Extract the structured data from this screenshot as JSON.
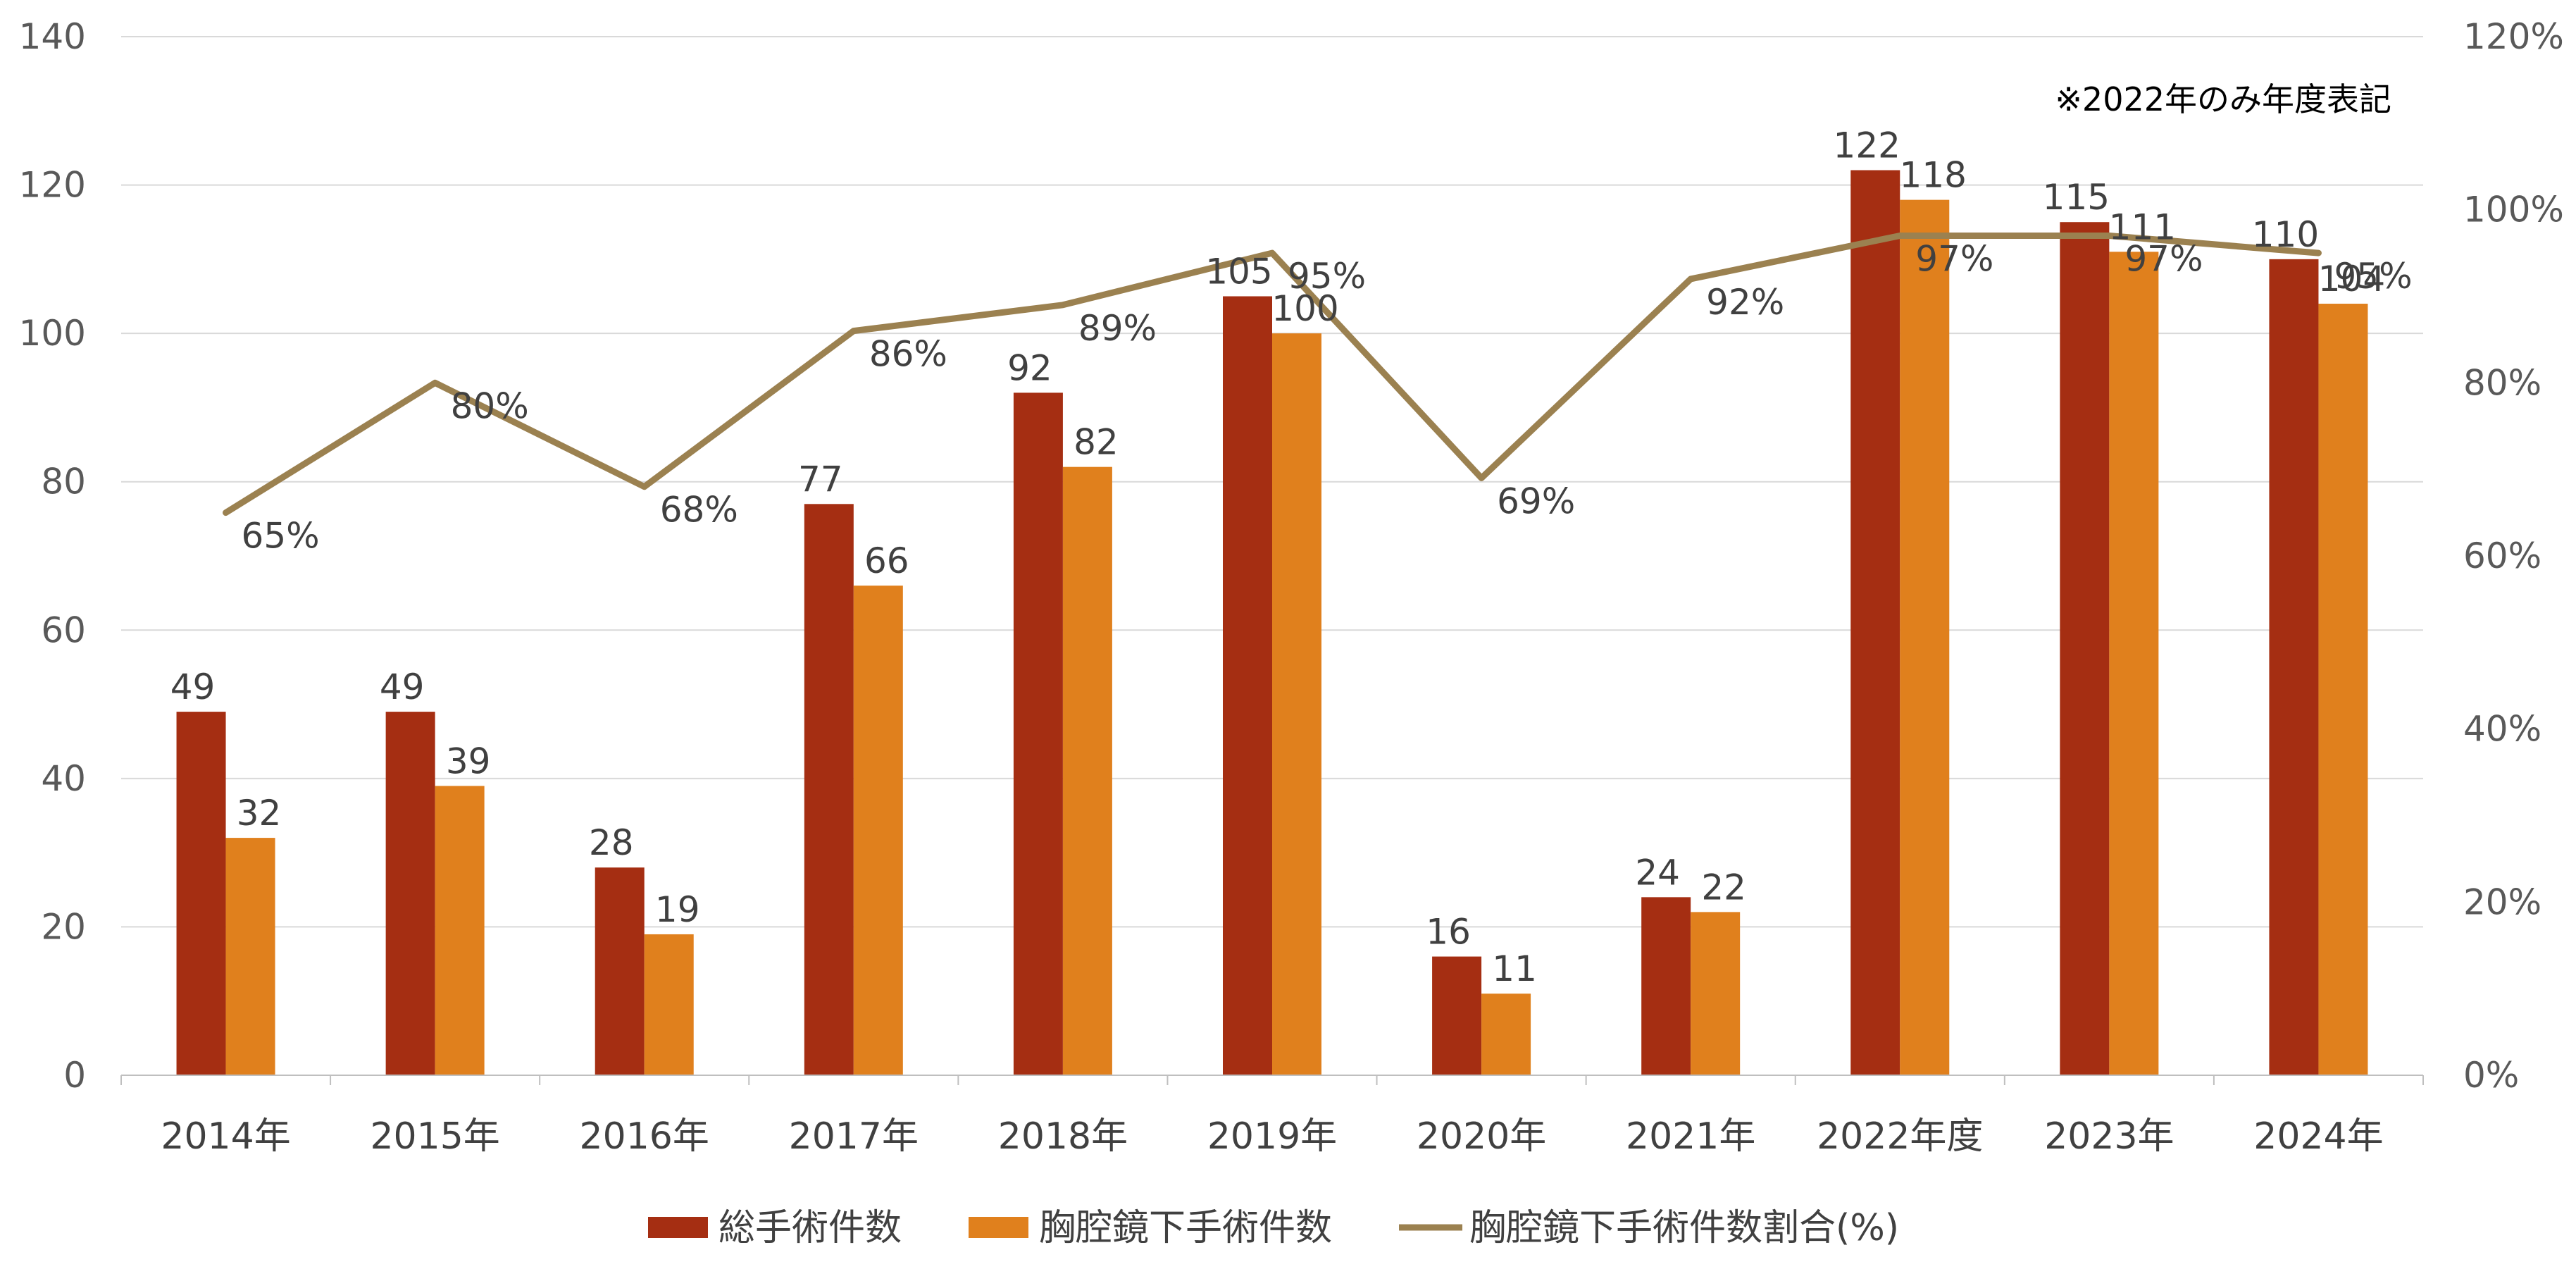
{
  "note": "※2022年のみ年度表記",
  "chart_data": {
    "type": "bar",
    "categories": [
      "2014年",
      "2015年",
      "2016年",
      "2017年",
      "2018年",
      "2019年",
      "2020年",
      "2021年",
      "2022年度",
      "2023年",
      "2024年"
    ],
    "series": [
      {
        "name": "総手術件数",
        "kind": "bar",
        "axis": "left",
        "color": "#A52E12",
        "values": [
          49,
          49,
          28,
          77,
          92,
          105,
          16,
          24,
          122,
          115,
          110
        ],
        "labels": [
          "49",
          "49",
          "28",
          "77",
          "92",
          "105",
          "16",
          "24",
          "122",
          "115",
          "110"
        ]
      },
      {
        "name": "胸腔鏡下手術件数",
        "kind": "bar",
        "axis": "left",
        "color": "#E0801D",
        "values": [
          32,
          39,
          19,
          66,
          82,
          100,
          11,
          22,
          118,
          111,
          104
        ],
        "labels": [
          "32",
          "39",
          "19",
          "66",
          "82",
          "100",
          "11",
          "22",
          "118",
          "111",
          "104"
        ]
      },
      {
        "name": "胸腔鏡下手術件数割合(%)",
        "kind": "line",
        "axis": "right",
        "color": "#9B8150",
        "values": [
          65,
          80,
          68,
          86,
          89,
          95,
          69,
          92,
          97,
          97,
          95
        ],
        "labels": [
          "65%",
          "80%",
          "68%",
          "86%",
          "89%",
          "95%",
          "69%",
          "92%",
          "97%",
          "97%",
          "95%"
        ]
      }
    ],
    "y_left": {
      "min": 0,
      "max": 140,
      "step": 20,
      "ticks": [
        "0",
        "20",
        "40",
        "60",
        "80",
        "100",
        "120",
        "140"
      ]
    },
    "y_right": {
      "min": 0,
      "max": 120,
      "step": 20,
      "ticks": [
        "0%",
        "20%",
        "40%",
        "60%",
        "80%",
        "100%",
        "120%"
      ]
    },
    "grid": true,
    "legend_position": "bottom"
  }
}
